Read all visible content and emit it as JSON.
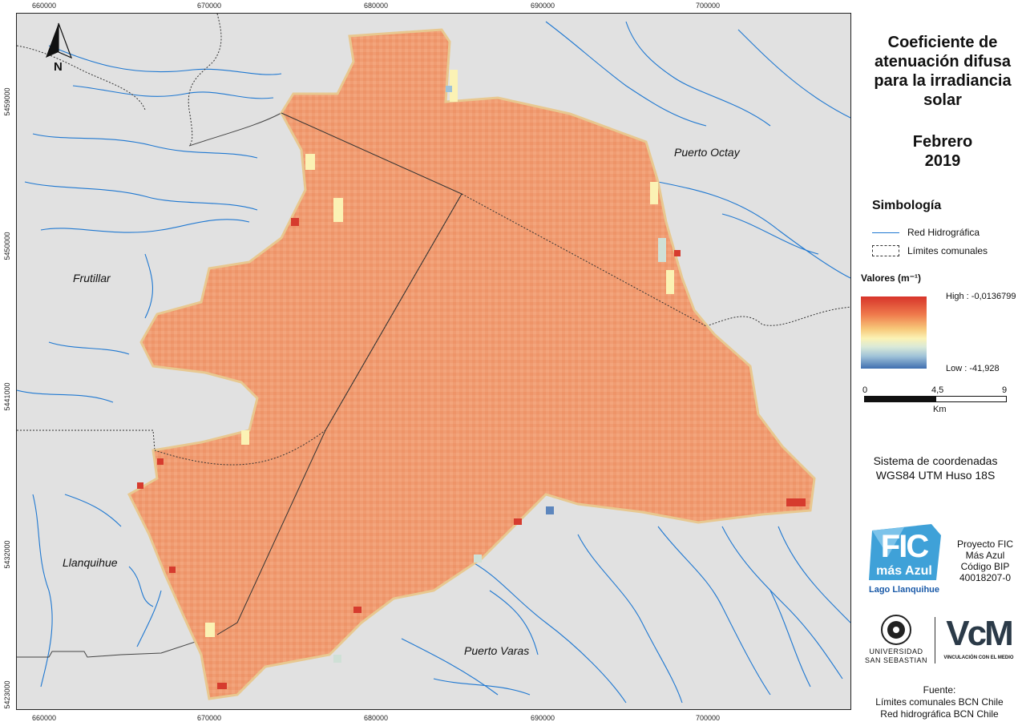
{
  "map": {
    "x_ticks": [
      "660000",
      "670000",
      "680000",
      "690000",
      "700000"
    ],
    "y_ticks": [
      "5459000",
      "5450000",
      "5441000",
      "5432000",
      "5423000"
    ],
    "north_label": "N",
    "places": [
      "Puerto Octay",
      "Frutillar",
      "Llanquihue",
      "Puerto Varas"
    ]
  },
  "legend": {
    "title_lines": [
      "Coeficiente de",
      "atenuación difusa",
      "para la irradiancia",
      "solar"
    ],
    "period_lines": [
      "Febrero",
      "2019"
    ],
    "symbology_heading": "Simbología",
    "items": [
      "Red Hidrográfica",
      "Límites comunales"
    ],
    "values_heading": "Valores (m⁻¹)",
    "high_label": "High : -0,0136799",
    "low_label": "Low : -41,928",
    "scale_labels": [
      "0",
      "4,5",
      "9"
    ],
    "scale_unit": "Km",
    "crs_lines": [
      "Sistema de coordenadas",
      "WGS84 UTM Huso 18S"
    ],
    "logo_fic_lines": [
      "FIC",
      "más Azul",
      "Lago Llanquihue"
    ],
    "project_lines": [
      "Proyecto FIC",
      "Más Azul",
      "Código BIP",
      "40018207-0"
    ],
    "uss_lines": [
      "UNIVERSIDAD",
      "SAN SEBASTIAN"
    ],
    "vcm_lines": [
      "VcM",
      "VINCULACIÓN CON EL MEDIO"
    ],
    "source_lines": [
      "Fuente:",
      "Límites comunales BCN Chile",
      "Red hidrográfica BCN Chile"
    ]
  },
  "colors": {
    "map_background": "#e1e1e1",
    "lake_fill": "#f09a70",
    "river": "#1f78d1",
    "ramp_high": "#d7342a",
    "ramp_mid": "#fbf2b4",
    "ramp_low": "#3f6fb0"
  }
}
